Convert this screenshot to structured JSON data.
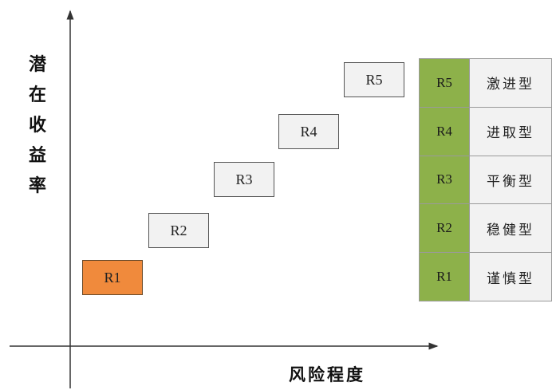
{
  "y_axis_label": [
    "潜",
    "在",
    "收",
    "益",
    "率"
  ],
  "x_axis_label": "风险程度",
  "levels": [
    {
      "code": "R1",
      "type": "谨慎型",
      "highlighted": true
    },
    {
      "code": "R2",
      "type": "稳健型",
      "highlighted": false
    },
    {
      "code": "R3",
      "type": "平衡型",
      "highlighted": false
    },
    {
      "code": "R4",
      "type": "进取型",
      "highlighted": false
    },
    {
      "code": "R5",
      "type": "激进型",
      "highlighted": false
    }
  ],
  "colors": {
    "highlight": "#f08a3c",
    "code_cell": "#8db14a",
    "box": "#f2f2f2",
    "axis": "#333333"
  }
}
